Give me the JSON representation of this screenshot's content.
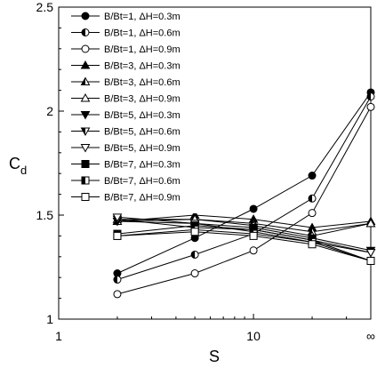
{
  "chart_data": {
    "type": "line",
    "xlabel": "S",
    "ylabel_main": "C",
    "ylabel_sub": "d",
    "x_scale": "log",
    "xlim": [
      1,
      40
    ],
    "ylim": [
      1,
      2.5
    ],
    "x_ticks": [
      {
        "value": 1,
        "label": "1"
      },
      {
        "value": 10,
        "label": "10"
      },
      {
        "value": 40,
        "label": "∞"
      }
    ],
    "y_ticks": [
      {
        "value": 1,
        "label": "1"
      },
      {
        "value": 1.5,
        "label": "1.5"
      },
      {
        "value": 2,
        "label": "2"
      },
      {
        "value": 2.5,
        "label": "2.5"
      }
    ],
    "x": [
      2,
      5,
      10,
      20,
      40
    ],
    "grid": false,
    "legend_position": "top-left",
    "series": [
      {
        "name": "B/Bt=1, ΔH=0.3m",
        "marker": "circle-filled",
        "values": [
          1.22,
          1.39,
          1.53,
          1.69,
          2.09
        ]
      },
      {
        "name": "B/Bt=1, ΔH=0.6m",
        "marker": "circle-half",
        "values": [
          1.19,
          1.31,
          1.41,
          1.58,
          2.07
        ]
      },
      {
        "name": "B/Bt=1, ΔH=0.9m",
        "marker": "circle-open",
        "values": [
          1.12,
          1.22,
          1.33,
          1.51,
          2.02
        ]
      },
      {
        "name": "B/Bt=3, ΔH=0.3m",
        "marker": "triangle-filled",
        "values": [
          1.47,
          1.5,
          1.48,
          1.44,
          1.47
        ]
      },
      {
        "name": "B/Bt=3, ΔH=0.6m",
        "marker": "triangle-half",
        "values": [
          1.47,
          1.48,
          1.46,
          1.42,
          1.46
        ]
      },
      {
        "name": "B/Bt=3, ΔH=0.9m",
        "marker": "triangle-open",
        "values": [
          1.48,
          1.48,
          1.45,
          1.4,
          1.46
        ]
      },
      {
        "name": "B/Bt=5, ΔH=0.3m",
        "marker": "tri-down-filled",
        "values": [
          1.47,
          1.46,
          1.44,
          1.39,
          1.33
        ]
      },
      {
        "name": "B/Bt=5, ΔH=0.6m",
        "marker": "tri-down-half",
        "values": [
          1.48,
          1.44,
          1.43,
          1.38,
          1.32
        ]
      },
      {
        "name": "B/Bt=5, ΔH=0.9m",
        "marker": "tri-down-open",
        "values": [
          1.49,
          1.46,
          1.42,
          1.37,
          1.32
        ]
      },
      {
        "name": "B/Bt=7, ΔH=0.3m",
        "marker": "square-filled",
        "values": [
          1.41,
          1.45,
          1.43,
          1.38,
          1.28
        ]
      },
      {
        "name": "B/Bt=7, ΔH=0.6m",
        "marker": "square-half",
        "values": [
          1.4,
          1.43,
          1.41,
          1.37,
          1.28
        ]
      },
      {
        "name": "B/Bt=7, ΔH=0.9m",
        "marker": "square-open",
        "values": [
          1.4,
          1.42,
          1.4,
          1.36,
          1.28
        ]
      }
    ]
  }
}
